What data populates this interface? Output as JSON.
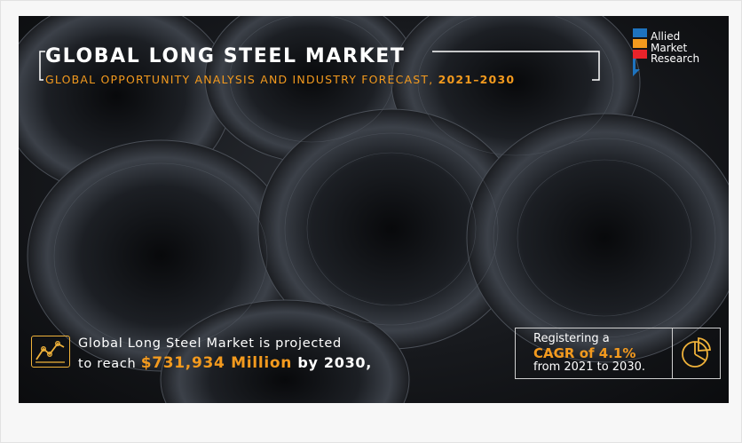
{
  "banner": {
    "title": "GLOBAL LONG STEEL MARKET",
    "subtitle_prefix": "GLOBAL OPPORTUNITY ANALYSIS AND INDUSTRY FORECAST, ",
    "subtitle_years": "2021–2030",
    "logo": {
      "line1": "Allied",
      "line2": "Market",
      "line3": "Research",
      "colors": [
        "#1e73be",
        "#f39a1e",
        "#e8232a"
      ]
    },
    "projection": {
      "line1": "Global Long Steel Market is projected",
      "line2_prefix": "to reach ",
      "amount": "$731,934 Million",
      "line2_mid": " by ",
      "year": "2030,",
      "icon": "chart-growth-icon"
    },
    "cagr": {
      "line1": "Registering a",
      "line2": "CAGR of 4.1%",
      "line3": "from 2021 to 2030.",
      "icon": "pie-chart-icon"
    },
    "accent_color": "#f39a1e"
  }
}
